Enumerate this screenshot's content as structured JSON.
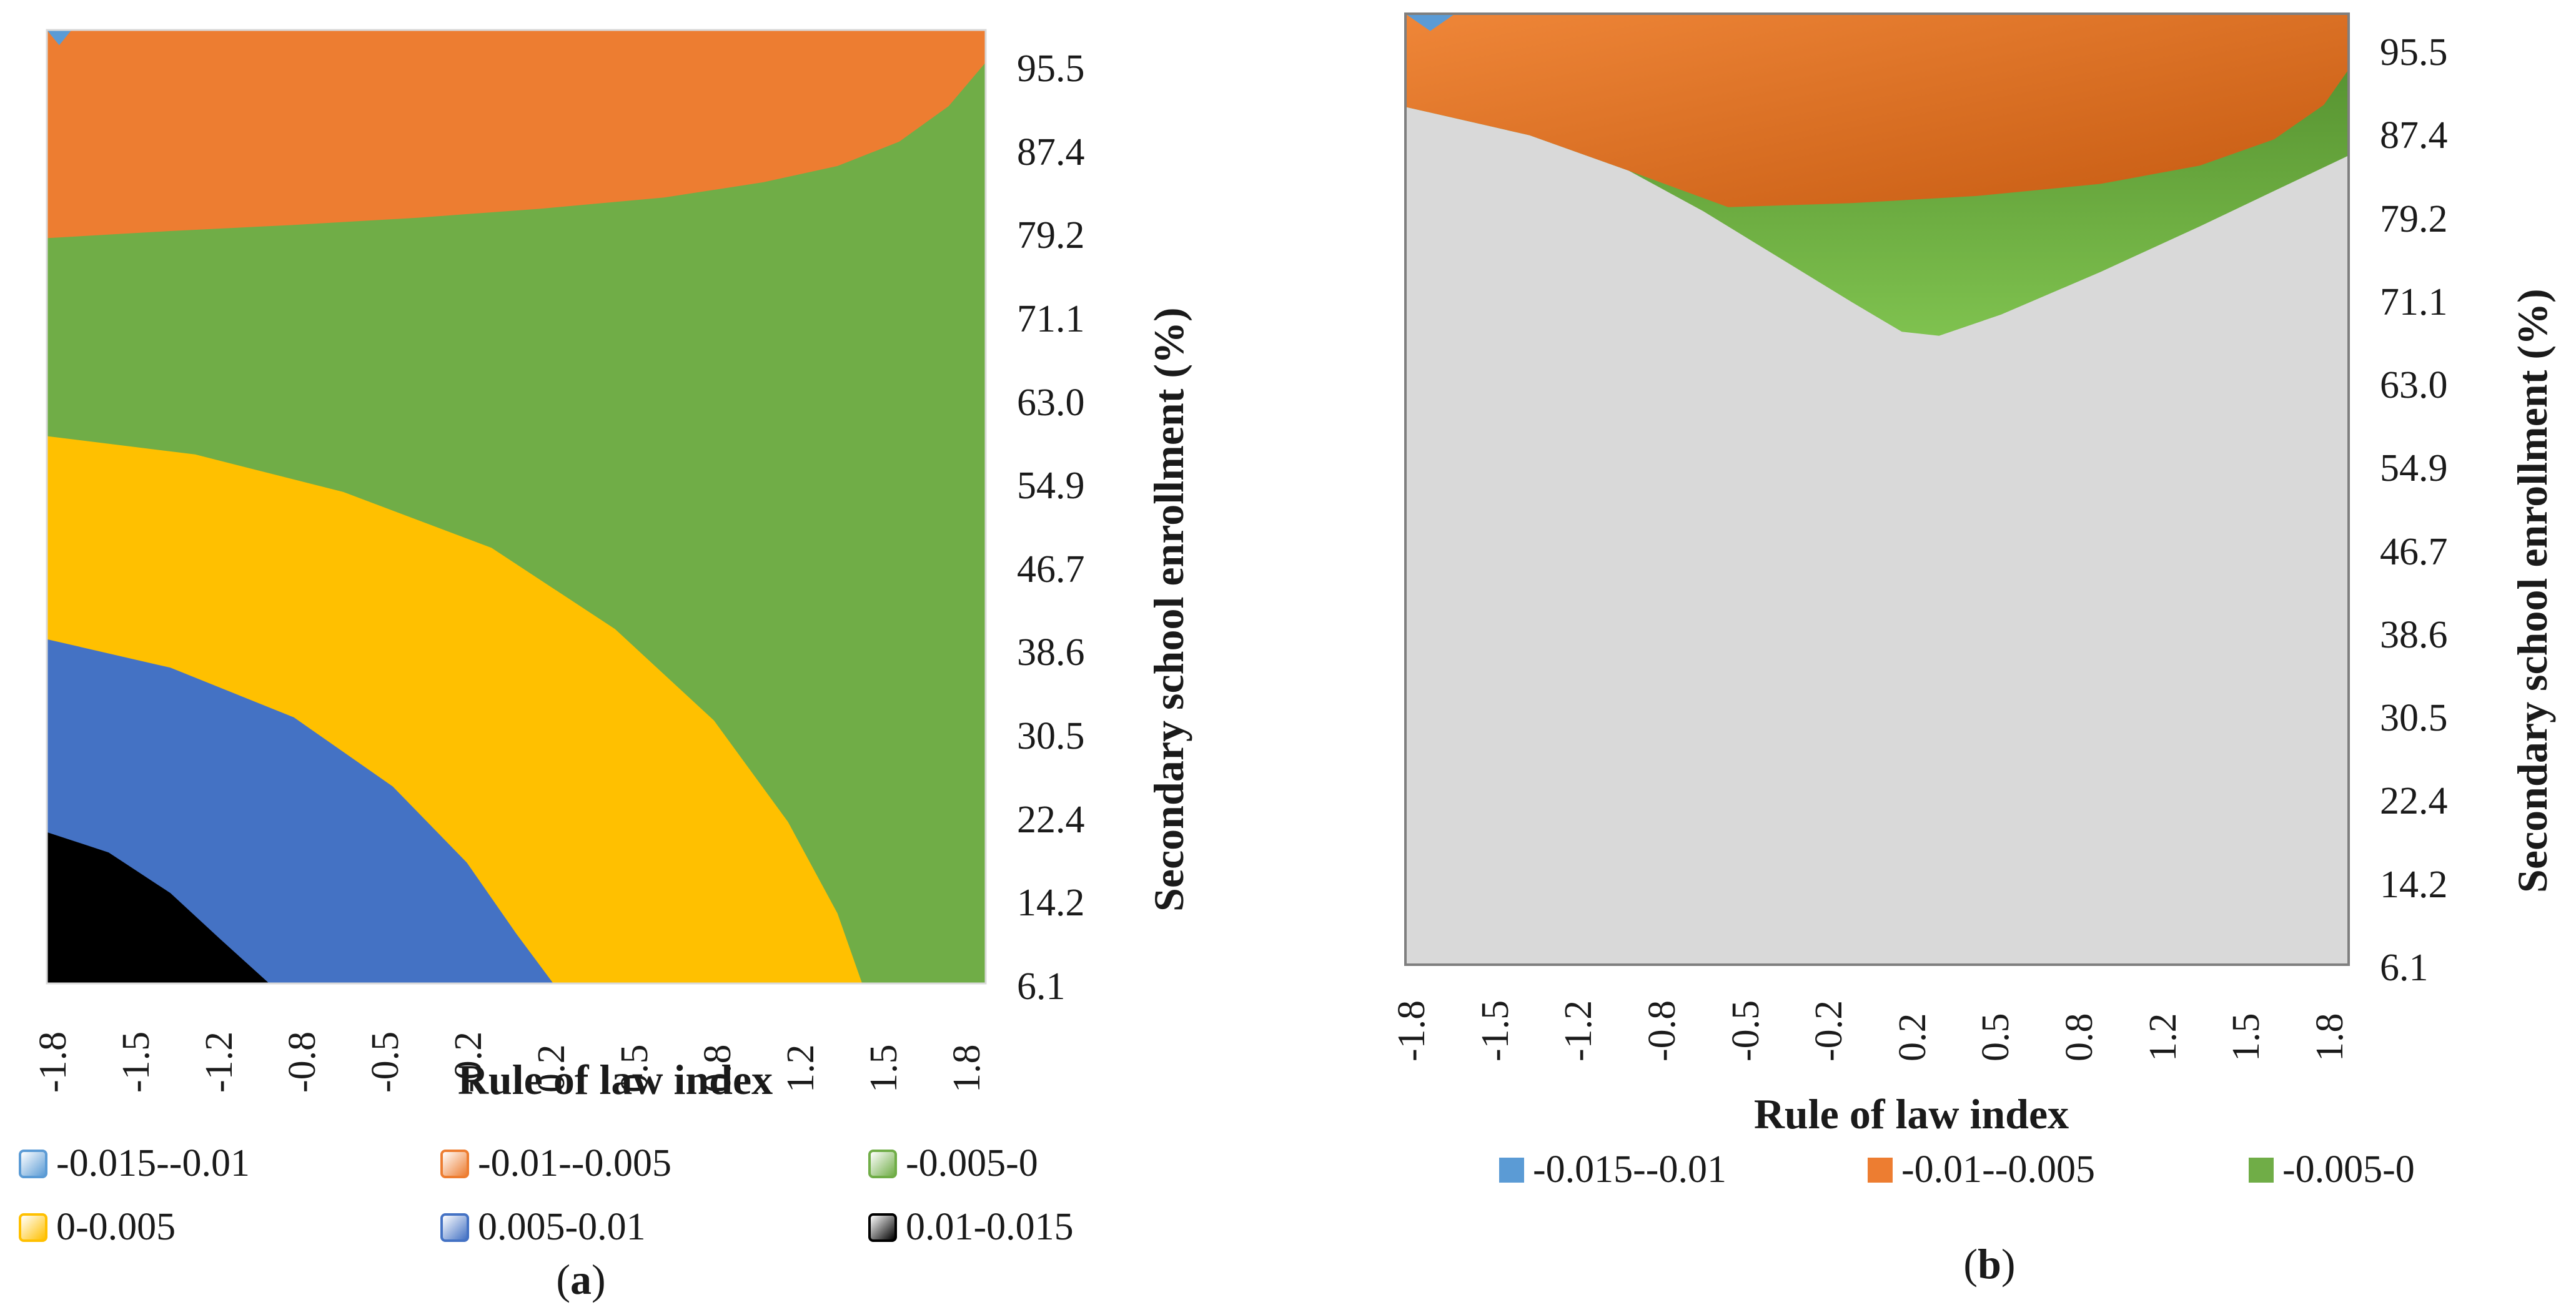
{
  "chart_data": [
    {
      "panel": "a",
      "type": "heatmap",
      "subtype": "contour",
      "caption_label": "a",
      "xlabel": "Rule of law index",
      "ylabel": "Secondary school enrollment (%)",
      "x_ticks": [
        "-1.8",
        "-1.5",
        "-1.2",
        "-0.8",
        "-0.5",
        "-0.2",
        "0.2",
        "0.5",
        "0.8",
        "1.2",
        "1.5",
        "1.8"
      ],
      "y_ticks": [
        "95.5",
        "87.4",
        "79.2",
        "71.1",
        "63.0",
        "54.9",
        "46.7",
        "38.6",
        "30.5",
        "22.4",
        "14.2",
        "6.1"
      ],
      "xlim": [
        -1.8,
        2.0
      ],
      "ylim": [
        6.1,
        100.0
      ],
      "legend": [
        {
          "label": "-0.015--0.01",
          "color": "#5b9bd5"
        },
        {
          "label": "-0.01--0.005",
          "color": "#ed7d31"
        },
        {
          "label": "-0.005-0",
          "color": "#70ad47"
        },
        {
          "label": "0-0.005",
          "color": "#ffc000"
        },
        {
          "label": "0.005-0.01",
          "color": "#4472c4"
        },
        {
          "label": "0.01-0.015",
          "color": "#000000"
        }
      ],
      "region_boundaries": [
        {
          "range": "-0.015--0.01",
          "x": [
            -1.8,
            -1.75,
            -1.7
          ],
          "y": [
            100.0,
            98.5,
            100.0
          ]
        },
        {
          "range": "-0.01--0.005",
          "x": [
            -1.8,
            -1.3,
            -0.8,
            -0.3,
            0.2,
            0.7,
            1.1,
            1.4,
            1.65,
            1.85,
            2.0
          ],
          "y": [
            79.5,
            80.2,
            80.8,
            81.5,
            82.4,
            83.5,
            85.0,
            86.6,
            89.0,
            92.5,
            96.8
          ]
        },
        {
          "range": "0-0.005",
          "x": [
            -1.8,
            -1.2,
            -0.6,
            0.0,
            0.5,
            0.9,
            1.2,
            1.4,
            1.5
          ],
          "y": [
            60.0,
            58.2,
            54.5,
            49.0,
            41.0,
            32.0,
            22.0,
            13.0,
            6.1
          ]
        },
        {
          "range": "0.005-0.01",
          "x": [
            -1.8,
            -1.3,
            -0.8,
            -0.4,
            -0.1,
            0.1,
            0.25
          ],
          "y": [
            40.0,
            37.2,
            32.3,
            25.5,
            18.0,
            11.0,
            6.1
          ]
        },
        {
          "range": "0.01-0.015",
          "x": [
            -1.8,
            -1.55,
            -1.3,
            -1.1,
            -0.9
          ],
          "y": [
            21.0,
            19.0,
            15.0,
            10.5,
            6.1
          ]
        }
      ]
    },
    {
      "panel": "b",
      "type": "heatmap",
      "subtype": "contour",
      "caption_label": "b",
      "xlabel": "Rule of law index",
      "ylabel": "Secondary school enrollment (%)",
      "x_ticks": [
        "-1.8",
        "-1.5",
        "-1.2",
        "-0.8",
        "-0.5",
        "-0.2",
        "0.2",
        "0.5",
        "0.8",
        "1.2",
        "1.5",
        "1.8"
      ],
      "y_ticks": [
        "95.5",
        "87.4",
        "79.2",
        "71.1",
        "63.0",
        "54.9",
        "46.7",
        "38.6",
        "30.5",
        "22.4",
        "14.2",
        "6.1"
      ],
      "xlim": [
        -1.8,
        2.0
      ],
      "ylim": [
        6.1,
        100.0
      ],
      "legend": [
        {
          "label": "-0.015--0.01",
          "color": "#5b9bd5"
        },
        {
          "label": "-0.01--0.005",
          "color": "#ed7d31"
        },
        {
          "label": "-0.005-0",
          "color": "#70ad47"
        }
      ],
      "region_boundaries": [
        {
          "range": "-0.015--0.01",
          "x": [
            -1.8,
            -1.7,
            -1.6
          ],
          "y": [
            100.0,
            98.3,
            100.0
          ]
        },
        {
          "range": "-0.005-0",
          "x": [
            -1.8,
            -1.3,
            -0.9,
            -0.6,
            -0.3,
            0.0,
            0.2,
            0.35,
            0.6,
            1.0,
            1.4,
            1.7,
            2.0
          ],
          "y": [
            90.8,
            88.0,
            84.5,
            80.5,
            76.0,
            71.5,
            68.6,
            68.2,
            70.3,
            74.5,
            79.0,
            82.5,
            86.0
          ]
        },
        {
          "range": "-0.01--0.005",
          "x": [
            -1.8,
            -1.3,
            -0.9,
            -0.5,
            0.0,
            0.5,
            1.0,
            1.4,
            1.7,
            1.9,
            2.0
          ],
          "y": [
            90.8,
            88.0,
            84.5,
            80.9,
            81.3,
            82.0,
            83.2,
            85.0,
            87.6,
            91.0,
            94.5
          ]
        }
      ],
      "background_color": "#d9d9d9"
    }
  ]
}
